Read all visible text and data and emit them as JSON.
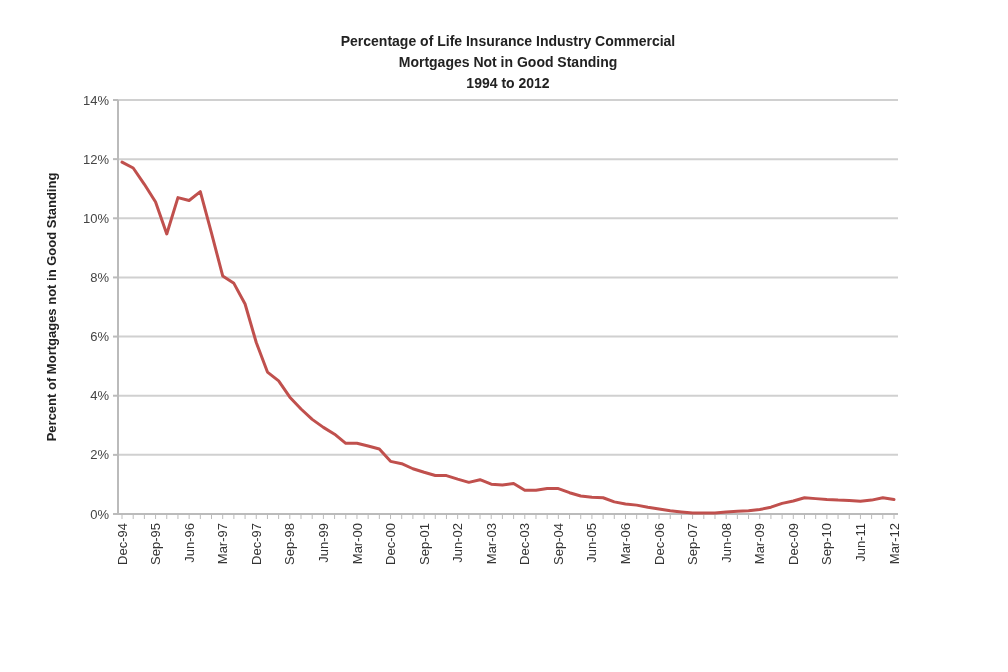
{
  "chart_data": {
    "type": "line",
    "title": "Percentage of Life Insurance Industry Commercial\nMortgages Not in Good Standing\n1994 to 2012",
    "ylabel": "Percent of Mortgages not in Good Standing",
    "categories": [
      "Dec-94",
      null,
      null,
      "Sep-95",
      null,
      null,
      "Jun-96",
      null,
      null,
      "Mar-97",
      null,
      null,
      "Dec-97",
      null,
      null,
      "Sep-98",
      null,
      null,
      "Jun-99",
      null,
      null,
      "Mar-00",
      null,
      null,
      "Dec-00",
      null,
      null,
      "Sep-01",
      null,
      null,
      "Jun-02",
      null,
      null,
      "Mar-03",
      null,
      null,
      "Dec-03",
      null,
      null,
      "Sep-04",
      null,
      null,
      "Jun-05",
      null,
      null,
      "Mar-06",
      null,
      null,
      "Dec-06",
      null,
      null,
      "Sep-07",
      null,
      null,
      "Jun-08",
      null,
      null,
      "Mar-09",
      null,
      null,
      "Dec-09",
      null,
      null,
      "Sep-10",
      null,
      null,
      "Jun-11",
      null,
      null,
      "Mar-12"
    ],
    "series": [
      {
        "color": "#c0504d",
        "values": [
          11.9,
          11.7,
          11.15,
          10.55,
          9.47,
          10.7,
          10.6,
          10.9,
          9.5,
          8.05,
          7.8,
          7.1,
          5.8,
          4.8,
          4.5,
          3.95,
          3.55,
          3.2,
          2.93,
          2.7,
          2.39,
          2.39,
          2.3,
          2.2,
          1.78,
          1.7,
          1.53,
          1.41,
          1.3,
          1.3,
          1.18,
          1.07,
          1.16,
          1.01,
          0.98,
          1.03,
          0.8,
          0.8,
          0.86,
          0.86,
          0.72,
          0.61,
          0.57,
          0.55,
          0.41,
          0.34,
          0.3,
          0.23,
          0.17,
          0.11,
          0.07,
          0.03,
          0.03,
          0.03,
          0.07,
          0.09,
          0.11,
          0.15,
          0.23,
          0.36,
          0.44,
          0.55,
          0.52,
          0.49,
          0.47,
          0.46,
          0.43,
          0.47,
          0.55,
          0.49
        ]
      }
    ],
    "ylim": [
      0,
      14
    ],
    "yticks": [
      {
        "value": 0,
        "label": "0%"
      },
      {
        "value": 2,
        "label": "2%"
      },
      {
        "value": 4,
        "label": "4%"
      },
      {
        "value": 6,
        "label": "6%"
      },
      {
        "value": 8,
        "label": "8%"
      },
      {
        "value": 10,
        "label": "10%"
      },
      {
        "value": 12,
        "label": "12%"
      },
      {
        "value": 14,
        "label": "14%"
      }
    ],
    "grid": "y",
    "marker": "none",
    "line_style": "solid"
  }
}
